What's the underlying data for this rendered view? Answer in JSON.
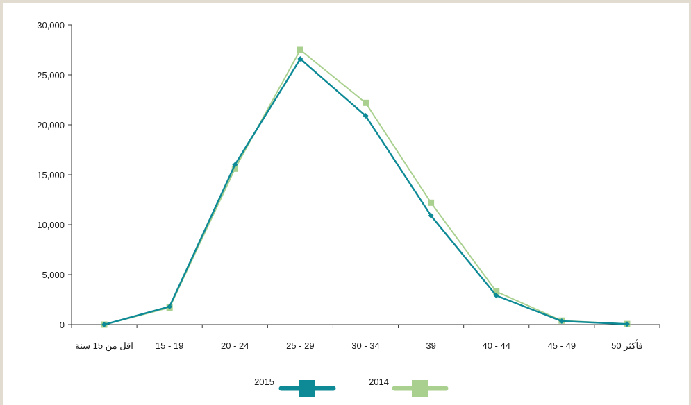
{
  "chart_data": {
    "type": "line",
    "title": "",
    "xlabel": "",
    "ylabel": "",
    "categories": [
      "اقل من 15 سنة",
      "15 - 19",
      "20 - 24",
      "25 - 29",
      "30 - 34",
      "39",
      "40 - 44",
      "45 - 49",
      "50 فأكثر"
    ],
    "ylim": [
      0,
      30000
    ],
    "yticks": [
      "0",
      "5,000",
      "10,000",
      "15,000",
      "20,000",
      "25,000",
      "30,000"
    ],
    "series": [
      {
        "name": "2015",
        "color": "#0e8a96",
        "marker": "diamond",
        "values": [
          0,
          1800,
          16000,
          26600,
          20900,
          10900,
          2900,
          350,
          50
        ]
      },
      {
        "name": "2014",
        "color": "#a9d08e",
        "marker": "square",
        "values": [
          0,
          1700,
          15600,
          27500,
          22200,
          12200,
          3300,
          400,
          60
        ]
      }
    ],
    "legend": {
      "position": "bottom",
      "items": [
        {
          "label": "2015",
          "series": 0
        },
        {
          "label": "2014",
          "series": 1
        }
      ]
    },
    "grid": false
  }
}
